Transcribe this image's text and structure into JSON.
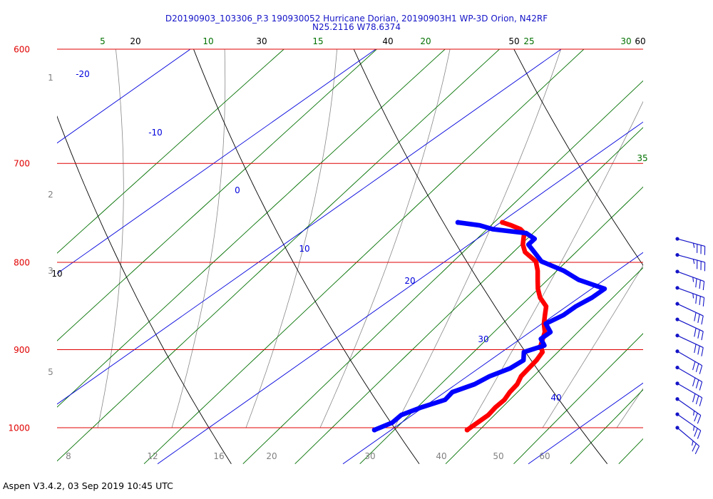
{
  "title": {
    "line1": "D20190903_103306_P.3 190930052 Hurricane Dorian, 20190903H1 WP-3D Orion, N42RF",
    "line2": "N25.2116 W78.6374"
  },
  "footer": "Aspen V3.4.2, 03 Sep 2019  10:45 UTC",
  "colors": {
    "pressure_lines": "#e00000",
    "pressure_labels": "#e00000",
    "isotherms": "#0000dd",
    "dry_adiabats": "#000000",
    "mixing_ratio": "#007000",
    "moist_adiabats": "#888888",
    "height_labels": "#808080",
    "temperature": "#ff0000",
    "dewpoint": "#0000ff",
    "wind_barbs": "#1414c8"
  },
  "chart_data": {
    "type": "line",
    "chart_kind": "skew-T log-P diagram",
    "grid": true,
    "pressure_levels": [
      "600",
      "700",
      "800",
      "900",
      "1000"
    ],
    "height_labels": [
      "1",
      "2",
      "3",
      "5"
    ],
    "bottom_labels": [
      "8",
      "12",
      "16",
      "20",
      "30",
      "40",
      "50",
      "60"
    ],
    "isotherm_labels": [
      "-20",
      "-10",
      "0",
      "10",
      "20",
      "30",
      "40"
    ],
    "dry_adiabat_labels": [
      "10",
      "20",
      "30",
      "40",
      "50",
      "60"
    ],
    "mixing_ratio_labels": [
      "5",
      "10",
      "15",
      "20",
      "25",
      "30",
      "35"
    ],
    "y_axis": {
      "unit": "hPa",
      "scale": "log",
      "range": [
        1000,
        600
      ]
    },
    "series": [
      {
        "key": "temperature",
        "x": [
          24.1,
          24.1,
          24.1,
          23.9,
          23.8,
          23.5,
          23.3,
          22.9,
          22.7,
          22.5,
          22.2,
          21.6,
          21.2,
          20.8,
          20.1,
          19.5,
          18.9,
          17.9,
          17.1,
          16.4,
          15.7,
          14.9,
          13.6,
          12.9,
          12.5,
          12.1,
          11.6,
          10.8,
          10.1
        ],
        "y": [
          1003,
          993,
          983,
          973,
          963,
          953,
          943,
          933,
          923,
          913,
          903,
          895,
          887,
          879,
          869,
          859,
          849,
          839,
          829,
          819,
          809,
          799,
          789,
          781,
          775,
          769,
          765,
          761,
          758
        ]
      },
      {
        "key": "dewpoint",
        "x": [
          19.1,
          19.5,
          19.4,
          19.9,
          20.6,
          20.4,
          21.0,
          21.2,
          21.7,
          21.8,
          21.2,
          21.8,
          21.1,
          21.1,
          20.2,
          20.5,
          20.5,
          20.7,
          20.7,
          18.6,
          17.1,
          15.2,
          14.1,
          13.2,
          13.1,
          12.2,
          10.1,
          9.1,
          7.7
        ],
        "y": [
          1003,
          993,
          983,
          973,
          963,
          953,
          943,
          933,
          923,
          913,
          903,
          895,
          887,
          879,
          869,
          859,
          849,
          839,
          829,
          819,
          809,
          799,
          789,
          781,
          775,
          769,
          765,
          761,
          758
        ]
      }
    ],
    "wind_barbs": {
      "pressure": [
        775,
        792,
        810,
        828,
        846,
        864,
        883,
        902,
        922,
        942,
        962,
        982,
        1000
      ],
      "direction_deg": [
        105,
        105,
        110,
        110,
        115,
        115,
        115,
        120,
        120,
        120,
        125,
        125,
        130
      ],
      "speed_kt": [
        35,
        35,
        35,
        35,
        30,
        30,
        30,
        30,
        30,
        30,
        25,
        25,
        25
      ]
    }
  }
}
